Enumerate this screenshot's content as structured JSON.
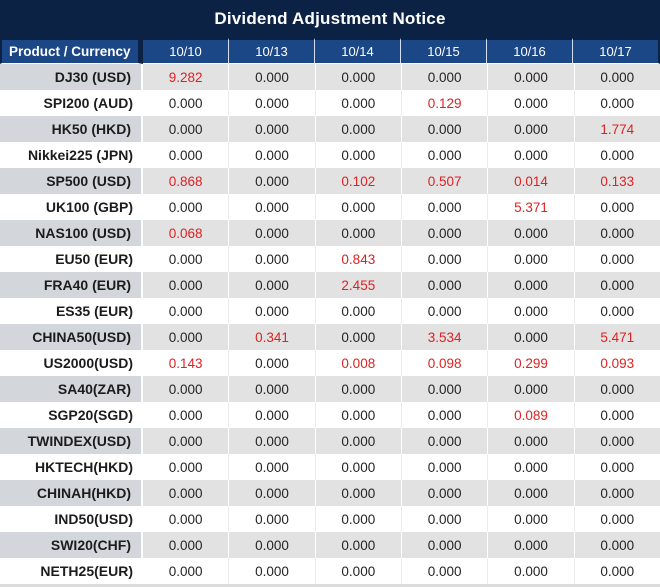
{
  "title": "Dividend Adjustment Notice",
  "table": {
    "product_header": "Product / Currency",
    "date_headers": [
      "10/10",
      "10/13",
      "10/14",
      "10/15",
      "10/16",
      "10/17"
    ],
    "rows": [
      {
        "product": "DJ30 (USD)",
        "values": [
          "9.282",
          "0.000",
          "0.000",
          "0.000",
          "0.000",
          "0.000"
        ],
        "highlight_indices": [
          0
        ]
      },
      {
        "product": "SPI200 (AUD)",
        "values": [
          "0.000",
          "0.000",
          "0.000",
          "0.129",
          "0.000",
          "0.000"
        ],
        "highlight_indices": [
          3
        ]
      },
      {
        "product": "HK50 (HKD)",
        "values": [
          "0.000",
          "0.000",
          "0.000",
          "0.000",
          "0.000",
          "1.774"
        ],
        "highlight_indices": [
          5
        ]
      },
      {
        "product": "Nikkei225 (JPN)",
        "values": [
          "0.000",
          "0.000",
          "0.000",
          "0.000",
          "0.000",
          "0.000"
        ],
        "highlight_indices": []
      },
      {
        "product": "SP500 (USD)",
        "values": [
          "0.868",
          "0.000",
          "0.102",
          "0.507",
          "0.014",
          "0.133"
        ],
        "highlight_indices": [
          0,
          2,
          3,
          4,
          5
        ]
      },
      {
        "product": "UK100 (GBP)",
        "values": [
          "0.000",
          "0.000",
          "0.000",
          "0.000",
          "5.371",
          "0.000"
        ],
        "highlight_indices": [
          4
        ]
      },
      {
        "product": "NAS100 (USD)",
        "values": [
          "0.068",
          "0.000",
          "0.000",
          "0.000",
          "0.000",
          "0.000"
        ],
        "highlight_indices": [
          0
        ]
      },
      {
        "product": "EU50 (EUR)",
        "values": [
          "0.000",
          "0.000",
          "0.843",
          "0.000",
          "0.000",
          "0.000"
        ],
        "highlight_indices": [
          2
        ]
      },
      {
        "product": "FRA40 (EUR)",
        "values": [
          "0.000",
          "0.000",
          "2.455",
          "0.000",
          "0.000",
          "0.000"
        ],
        "highlight_indices": [
          2
        ]
      },
      {
        "product": "ES35 (EUR)",
        "values": [
          "0.000",
          "0.000",
          "0.000",
          "0.000",
          "0.000",
          "0.000"
        ],
        "highlight_indices": []
      },
      {
        "product": "CHINA50(USD)",
        "values": [
          "0.000",
          "0.341",
          "0.000",
          "3.534",
          "0.000",
          "5.471"
        ],
        "highlight_indices": [
          1,
          3,
          5
        ]
      },
      {
        "product": "US2000(USD)",
        "values": [
          "0.143",
          "0.000",
          "0.008",
          "0.098",
          "0.299",
          "0.093"
        ],
        "highlight_indices": [
          0,
          2,
          3,
          4,
          5
        ]
      },
      {
        "product": "SA40(ZAR)",
        "values": [
          "0.000",
          "0.000",
          "0.000",
          "0.000",
          "0.000",
          "0.000"
        ],
        "highlight_indices": []
      },
      {
        "product": "SGP20(SGD)",
        "values": [
          "0.000",
          "0.000",
          "0.000",
          "0.000",
          "0.089",
          "0.000"
        ],
        "highlight_indices": [
          4
        ]
      },
      {
        "product": "TWINDEX(USD)",
        "values": [
          "0.000",
          "0.000",
          "0.000",
          "0.000",
          "0.000",
          "0.000"
        ],
        "highlight_indices": []
      },
      {
        "product": "HKTECH(HKD)",
        "values": [
          "0.000",
          "0.000",
          "0.000",
          "0.000",
          "0.000",
          "0.000"
        ],
        "highlight_indices": []
      },
      {
        "product": "CHINAH(HKD)",
        "values": [
          "0.000",
          "0.000",
          "0.000",
          "0.000",
          "0.000",
          "0.000"
        ],
        "highlight_indices": []
      },
      {
        "product": "IND50(USD)",
        "values": [
          "0.000",
          "0.000",
          "0.000",
          "0.000",
          "0.000",
          "0.000"
        ],
        "highlight_indices": []
      },
      {
        "product": "SWI20(CHF)",
        "values": [
          "0.000",
          "0.000",
          "0.000",
          "0.000",
          "0.000",
          "0.000"
        ],
        "highlight_indices": []
      },
      {
        "product": "NETH25(EUR)",
        "values": [
          "0.000",
          "0.000",
          "0.000",
          "0.000",
          "0.000",
          "0.000"
        ],
        "highlight_indices": []
      }
    ]
  },
  "colors": {
    "title_bg": "#0c2245",
    "header_bg": "#1b4787",
    "header_text": "#ffffff",
    "alt_row_bg": "#e2e2e2",
    "alt_row_product_bg": "#d3d7dc",
    "plain_row_bg": "#ffffff",
    "value_text": "#242424",
    "highlight_text": "#dd2222"
  },
  "chart_data": {
    "type": "table",
    "title": "Dividend Adjustment Notice",
    "columns": [
      "Product / Currency",
      "10/10",
      "10/13",
      "10/14",
      "10/15",
      "10/16",
      "10/17"
    ],
    "rows": [
      [
        "DJ30 (USD)",
        9.282,
        0.0,
        0.0,
        0.0,
        0.0,
        0.0
      ],
      [
        "SPI200 (AUD)",
        0.0,
        0.0,
        0.0,
        0.129,
        0.0,
        0.0
      ],
      [
        "HK50 (HKD)",
        0.0,
        0.0,
        0.0,
        0.0,
        0.0,
        1.774
      ],
      [
        "Nikkei225 (JPN)",
        0.0,
        0.0,
        0.0,
        0.0,
        0.0,
        0.0
      ],
      [
        "SP500 (USD)",
        0.868,
        0.0,
        0.102,
        0.507,
        0.014,
        0.133
      ],
      [
        "UK100 (GBP)",
        0.0,
        0.0,
        0.0,
        0.0,
        5.371,
        0.0
      ],
      [
        "NAS100 (USD)",
        0.068,
        0.0,
        0.0,
        0.0,
        0.0,
        0.0
      ],
      [
        "EU50 (EUR)",
        0.0,
        0.0,
        0.843,
        0.0,
        0.0,
        0.0
      ],
      [
        "FRA40 (EUR)",
        0.0,
        0.0,
        2.455,
        0.0,
        0.0,
        0.0
      ],
      [
        "ES35 (EUR)",
        0.0,
        0.0,
        0.0,
        0.0,
        0.0,
        0.0
      ],
      [
        "CHINA50(USD)",
        0.0,
        0.341,
        0.0,
        3.534,
        0.0,
        5.471
      ],
      [
        "US2000(USD)",
        0.143,
        0.0,
        0.008,
        0.098,
        0.299,
        0.093
      ],
      [
        "SA40(ZAR)",
        0.0,
        0.0,
        0.0,
        0.0,
        0.0,
        0.0
      ],
      [
        "SGP20(SGD)",
        0.0,
        0.0,
        0.0,
        0.0,
        0.089,
        0.0
      ],
      [
        "TWINDEX(USD)",
        0.0,
        0.0,
        0.0,
        0.0,
        0.0,
        0.0
      ],
      [
        "HKTECH(HKD)",
        0.0,
        0.0,
        0.0,
        0.0,
        0.0,
        0.0
      ],
      [
        "CHINAH(HKD)",
        0.0,
        0.0,
        0.0,
        0.0,
        0.0,
        0.0
      ],
      [
        "IND50(USD)",
        0.0,
        0.0,
        0.0,
        0.0,
        0.0,
        0.0
      ],
      [
        "SWI20(CHF)",
        0.0,
        0.0,
        0.0,
        0.0,
        0.0,
        0.0
      ],
      [
        "NETH25(EUR)",
        0.0,
        0.0,
        0.0,
        0.0,
        0.0,
        0.0
      ]
    ],
    "highlight_cells_note": "non-zero values shown in red",
    "layout": {
      "striped_rows": true,
      "first_column_right_aligned": true,
      "value_columns_centered": true
    }
  }
}
